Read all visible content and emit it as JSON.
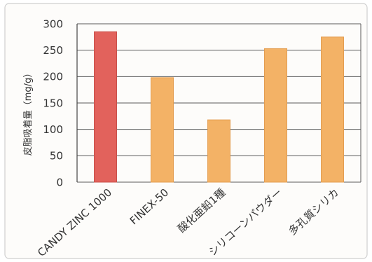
{
  "chart_data": {
    "type": "bar",
    "title": "",
    "xlabel": "",
    "ylabel": "皮脂吸着量（mg/g）",
    "categories": [
      "CANDY ZINC 1000",
      "FINEX-50",
      "酸化亜鉛1種",
      "シリコーンパウダー",
      "多孔質シリカ"
    ],
    "values": [
      285,
      198,
      118,
      253,
      275
    ],
    "ylim": [
      0,
      300
    ],
    "yticks": [
      0,
      50,
      100,
      150,
      200,
      250,
      300
    ],
    "grid": true,
    "legend": "none",
    "colors": [
      "#e2625c",
      "#f3b266",
      "#f3b266",
      "#f3b266",
      "#f3b266"
    ],
    "edge_colors": [
      "#c94f49",
      "#e39d50",
      "#e39d50",
      "#e39d50",
      "#e39d50"
    ]
  }
}
